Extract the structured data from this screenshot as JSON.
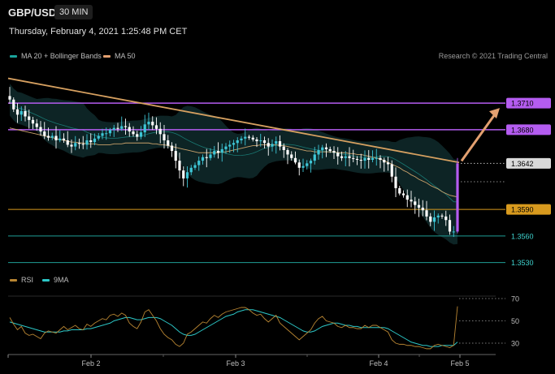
{
  "header": {
    "symbol": "GBP/USD",
    "timeframe": "30 MIN",
    "datetime": "Thursday, February 4, 2021 1:25:48 PM CET"
  },
  "legend_top": [
    {
      "label": "MA 20 + Bollinger Bands",
      "color": "#1aa39b"
    },
    {
      "label": "MA 50",
      "color": "#e3a070"
    }
  ],
  "copyright": "Research © 2021 Trading Central",
  "legend_bottom": [
    {
      "label": "RSI",
      "color": "#b88532"
    },
    {
      "label": "9MA",
      "color": "#2cc7c7"
    }
  ],
  "colors": {
    "bull": "#3ec6d6",
    "bear": "#ffffff",
    "resistance": "#b45cf0",
    "pivot": "#d89a1e",
    "support": "#1f9e96",
    "trendline": "#d6a060",
    "arrow": "#e3a070",
    "current": "#d9d9d9",
    "grid": "#2a2a2a"
  },
  "chart_data": {
    "type": "candlestick",
    "instrument": "GBP/USD",
    "interval": "30 MIN",
    "x_labels": [
      "Feb 2",
      "Feb 3",
      "Feb 4",
      "Feb 5"
    ],
    "ylim": [
      1.3515,
      1.3755
    ],
    "levels": [
      {
        "value": 1.371,
        "label": "1.3710",
        "type": "resistance"
      },
      {
        "value": 1.368,
        "label": "1.3680",
        "type": "resistance"
      },
      {
        "value": 1.3642,
        "label": "1.3642",
        "type": "current"
      },
      {
        "value": 1.359,
        "label": "1.3590",
        "type": "pivot"
      },
      {
        "value": 1.356,
        "label": "1.3560",
        "type": "support"
      },
      {
        "value": 1.353,
        "label": "1.3530",
        "type": "support"
      }
    ],
    "trendline": {
      "start": 1.3738,
      "end": 1.3643
    },
    "projection": {
      "from": 1.3642,
      "to": 1.371
    },
    "closes": [
      1.3714,
      1.3703,
      1.3697,
      1.3701,
      1.3695,
      1.3691,
      1.3687,
      1.3683,
      1.3678,
      1.3673,
      1.3671,
      1.3673,
      1.3668,
      1.367,
      1.3668,
      1.3663,
      1.3661,
      1.3665,
      1.3664,
      1.3663,
      1.3668,
      1.3666,
      1.367,
      1.3673,
      1.3676,
      1.3676,
      1.368,
      1.3682,
      1.3681,
      1.3684,
      1.3683,
      1.3678,
      1.3675,
      1.3672,
      1.3677,
      1.3686,
      1.3689,
      1.3685,
      1.3681,
      1.3675,
      1.3668,
      1.3662,
      1.3656,
      1.3645,
      1.3634,
      1.3625,
      1.3632,
      1.3637,
      1.364,
      1.3645,
      1.3649,
      1.3648,
      1.3652,
      1.3656,
      1.3654,
      1.3658,
      1.3661,
      1.3663,
      1.3665,
      1.3668,
      1.367,
      1.3672,
      1.3671,
      1.3669,
      1.3667,
      1.3668,
      1.3665,
      1.3661,
      1.3664,
      1.3667,
      1.3661,
      1.3657,
      1.3652,
      1.3648,
      1.3643,
      1.3637,
      1.3639,
      1.3642,
      1.3645,
      1.3652,
      1.3657,
      1.366,
      1.3658,
      1.3656,
      1.3654,
      1.365,
      1.3648,
      1.365,
      1.3648,
      1.3647,
      1.3646,
      1.3645,
      1.3648,
      1.3646,
      1.3648,
      1.3648,
      1.3646,
      1.3643,
      1.3641,
      1.3627,
      1.3614,
      1.3608,
      1.3606,
      1.3601,
      1.3599,
      1.3595,
      1.3592,
      1.3589,
      1.3582,
      1.3576,
      1.3581,
      1.3583,
      1.3582,
      1.3578,
      1.3565,
      1.3565,
      1.3642
    ],
    "ma50": [
      1.3682,
      1.3681,
      1.368,
      1.3679,
      1.3678,
      1.3677,
      1.3676,
      1.3675,
      1.3674,
      1.3673,
      1.3672,
      1.3671,
      1.367,
      1.3669,
      1.3668,
      1.3667,
      1.3666,
      1.3666,
      1.3665,
      1.3665,
      1.3664,
      1.3664,
      1.3664,
      1.3663,
      1.3663,
      1.3663,
      1.3663,
      1.3664,
      1.3664,
      1.3664,
      1.3665,
      1.3665,
      1.3665,
      1.3665,
      1.3665,
      1.3665,
      1.3665,
      1.3664,
      1.3664,
      1.3663,
      1.3663,
      1.3662,
      1.3661,
      1.366,
      1.3659,
      1.3658,
      1.3657,
      1.3656,
      1.3655,
      1.3654,
      1.3654,
      1.3654,
      1.3654,
      1.3654,
      1.3654,
      1.3655,
      1.3655,
      1.3656,
      1.3657,
      1.3658,
      1.3659,
      1.366,
      1.3661,
      1.3662,
      1.3662,
      1.3663,
      1.3663,
      1.3663,
      1.3663,
      1.3663,
      1.3662,
      1.3662,
      1.3661,
      1.366,
      1.3659,
      1.3658,
      1.3657,
      1.3656,
      1.3656,
      1.3655,
      1.3655,
      1.3655,
      1.3655,
      1.3655,
      1.3655,
      1.3654,
      1.3654,
      1.3654,
      1.3653,
      1.3653,
      1.3652,
      1.3652,
      1.3651,
      1.365,
      1.3649,
      1.3648,
      1.3647,
      1.3645,
      1.3643,
      1.3641,
      1.3639,
      1.3637,
      1.3634,
      1.3632,
      1.3629,
      1.3627,
      1.3624,
      1.3622,
      1.362,
      1.3617,
      1.3615,
      1.3613,
      1.361,
      1.3608,
      1.3606,
      1.3605,
      1.3604
    ],
    "rsi": [
      53,
      47,
      42,
      45,
      39,
      37,
      38,
      36,
      34,
      39,
      41,
      40,
      39,
      42,
      45,
      42,
      44,
      46,
      43,
      42,
      47,
      45,
      48,
      50,
      52,
      51,
      55,
      56,
      54,
      57,
      55,
      48,
      45,
      43,
      49,
      58,
      60,
      55,
      50,
      43,
      38,
      35,
      33,
      29,
      27,
      30,
      38,
      40,
      43,
      46,
      49,
      48,
      52,
      55,
      53,
      56,
      58,
      59,
      60,
      61,
      62,
      62,
      60,
      57,
      55,
      56,
      52,
      49,
      52,
      55,
      48,
      45,
      42,
      39,
      36,
      33,
      36,
      39,
      42,
      48,
      52,
      54,
      50,
      49,
      48,
      45,
      44,
      46,
      44,
      44,
      43,
      43,
      46,
      44,
      46,
      46,
      44,
      42,
      40,
      33,
      30,
      29,
      29,
      28,
      28,
      27,
      27,
      26,
      25,
      25,
      28,
      29,
      28,
      27,
      26,
      28,
      63
    ],
    "rsi_ma": [
      49,
      48,
      47,
      46,
      45,
      44,
      43,
      42,
      41,
      40,
      40,
      40,
      40,
      40,
      41,
      41,
      42,
      42,
      42,
      42,
      43,
      43,
      44,
      45,
      46,
      47,
      48,
      50,
      51,
      52,
      53,
      53,
      52,
      51,
      51,
      52,
      53,
      53,
      53,
      52,
      50,
      48,
      46,
      43,
      40,
      38,
      37,
      37,
      38,
      40,
      42,
      44,
      46,
      48,
      50,
      52,
      54,
      55,
      56,
      58,
      59,
      60,
      60,
      60,
      59,
      58,
      57,
      56,
      55,
      54,
      53,
      51,
      49,
      47,
      45,
      43,
      41,
      40,
      40,
      41,
      43,
      45,
      46,
      47,
      48,
      48,
      47,
      46,
      46,
      45,
      45,
      44,
      44,
      44,
      44,
      44,
      44,
      44,
      43,
      41,
      39,
      37,
      35,
      33,
      31,
      30,
      29,
      28,
      28,
      27,
      27,
      27,
      28,
      28,
      28,
      28,
      31
    ],
    "rsi_levels": [
      70,
      50,
      30
    ]
  }
}
